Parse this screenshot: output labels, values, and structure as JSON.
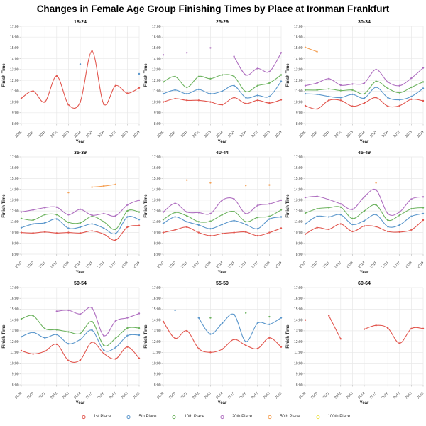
{
  "title": "Changes in Female Age Group Finishing Times by Place at Ironman Frankfurt",
  "legend": {
    "position": "bottom",
    "items": [
      {
        "label": "1st Place",
        "color": "#e2574f"
      },
      {
        "label": "5th Place",
        "color": "#5b97cc"
      },
      {
        "label": "10th Place",
        "color": "#6db35f"
      },
      {
        "label": "20th Place",
        "color": "#af6fc0"
      },
      {
        "label": "50th Place",
        "color": "#f5a054"
      },
      {
        "label": "100th Place",
        "color": "#ede44e"
      }
    ]
  },
  "chart_data": {
    "type": "line",
    "x": [
      2009,
      2010,
      2011,
      2012,
      2013,
      2014,
      2015,
      2016,
      2017,
      2018,
      2019
    ],
    "xlabel": "Year",
    "ylabel": "Finish Time",
    "ylim": [
      8,
      17
    ],
    "y_ticks": [
      "8:00",
      "9:00",
      "10:00",
      "11:00",
      "12:00",
      "13:00",
      "14:00",
      "15:00",
      "16:00",
      "17:00"
    ],
    "grid": true,
    "note": "values are finishing times in decimal hours; null = no finisher that year",
    "facets": [
      {
        "title": "18-24",
        "series": [
          {
            "name": "1st Place",
            "values": [
              10.33,
              11.0,
              10.0,
              12.4,
              9.75,
              10.0,
              14.7,
              9.8,
              11.5,
              10.8,
              11.3
            ]
          },
          {
            "name": "5th Place",
            "values": [
              null,
              null,
              null,
              null,
              null,
              13.5,
              null,
              null,
              null,
              null,
              12.6
            ]
          }
        ]
      },
      {
        "title": "25-29",
        "series": [
          {
            "name": "1st Place",
            "values": [
              10.0,
              10.3,
              10.15,
              10.15,
              10.0,
              9.75,
              10.4,
              9.85,
              10.15,
              9.9,
              10.2
            ]
          },
          {
            "name": "5th Place",
            "values": [
              10.75,
              11.1,
              10.75,
              11.15,
              10.75,
              11.0,
              11.5,
              10.4,
              10.6,
              10.5,
              11.9
            ]
          },
          {
            "name": "10th Place",
            "values": [
              11.85,
              12.35,
              11.35,
              12.35,
              12.15,
              12.5,
              12.35,
              10.95,
              11.5,
              11.75,
              12.5
            ]
          },
          {
            "name": "20th Place",
            "values": [
              14.35,
              null,
              14.55,
              null,
              15.0,
              null,
              14.2,
              12.5,
              13.1,
              12.8,
              14.55
            ]
          }
        ]
      },
      {
        "title": "30-34",
        "series": [
          {
            "name": "1st Place",
            "values": [
              9.65,
              9.35,
              10.15,
              10.15,
              9.6,
              9.9,
              10.4,
              9.6,
              9.65,
              10.25,
              10.1
            ]
          },
          {
            "name": "5th Place",
            "values": [
              10.75,
              10.7,
              10.5,
              10.4,
              10.7,
              10.35,
              11.35,
              10.4,
              10.2,
              10.5,
              11.25
            ]
          },
          {
            "name": "10th Place",
            "values": [
              11.1,
              11.1,
              11.2,
              11.05,
              11.1,
              10.75,
              11.9,
              11.25,
              10.85,
              11.35,
              11.85
            ]
          },
          {
            "name": "20th Place",
            "values": [
              11.5,
              11.75,
              12.15,
              11.55,
              11.65,
              11.75,
              13.0,
              11.85,
              11.5,
              12.2,
              13.15
            ]
          },
          {
            "name": "50th Place",
            "values": [
              15.05,
              14.65,
              null,
              null,
              null,
              null,
              null,
              null,
              null,
              null,
              null
            ]
          }
        ]
      },
      {
        "title": "35-39",
        "series": [
          {
            "name": "1st Place",
            "values": [
              10.0,
              9.95,
              10.05,
              9.95,
              10.0,
              9.95,
              10.15,
              9.85,
              9.3,
              10.5,
              10.65
            ]
          },
          {
            "name": "5th Place",
            "values": [
              10.45,
              10.8,
              10.9,
              11.25,
              10.4,
              10.5,
              10.8,
              10.4,
              9.9,
              11.45,
              11.2
            ]
          },
          {
            "name": "10th Place",
            "values": [
              11.3,
              11.15,
              11.65,
              11.65,
              10.95,
              10.9,
              11.5,
              11.0,
              10.3,
              12.0,
              11.9
            ]
          },
          {
            "name": "20th Place",
            "values": [
              11.9,
              12.1,
              12.3,
              12.35,
              11.65,
              12.15,
              11.6,
              11.75,
              11.55,
              12.55,
              13.0
            ]
          },
          {
            "name": "50th Place",
            "values": [
              null,
              null,
              null,
              null,
              13.7,
              null,
              14.2,
              14.3,
              14.45,
              null,
              null
            ]
          }
        ]
      },
      {
        "title": "40-44",
        "series": [
          {
            "name": "1st Place",
            "values": [
              10.0,
              10.25,
              10.5,
              10.0,
              9.7,
              9.9,
              10.0,
              10.05,
              9.7,
              10.0,
              10.4
            ]
          },
          {
            "name": "5th Place",
            "values": [
              10.85,
              11.45,
              11.0,
              10.7,
              10.35,
              10.75,
              11.1,
              10.75,
              10.35,
              11.25,
              11.45
            ]
          },
          {
            "name": "10th Place",
            "values": [
              11.2,
              11.85,
              11.55,
              11.0,
              11.05,
              11.65,
              11.95,
              11.0,
              11.4,
              11.5,
              12.1
            ]
          },
          {
            "name": "20th Place",
            "values": [
              11.9,
              12.7,
              11.9,
              11.85,
              11.75,
              13.0,
              13.1,
              11.75,
              12.5,
              12.65,
              13.0
            ]
          },
          {
            "name": "50th Place",
            "values": [
              null,
              null,
              14.85,
              null,
              14.6,
              null,
              null,
              14.35,
              null,
              14.4,
              null
            ]
          }
        ]
      },
      {
        "title": "45-49",
        "series": [
          {
            "name": "1st Place",
            "values": [
              9.85,
              10.45,
              10.3,
              10.8,
              10.1,
              10.6,
              10.55,
              10.1,
              10.05,
              10.25,
              11.15
            ]
          },
          {
            "name": "5th Place",
            "values": [
              10.8,
              11.5,
              11.45,
              11.65,
              10.75,
              11.1,
              11.65,
              10.55,
              10.7,
              11.5,
              11.75
            ]
          },
          {
            "name": "10th Place",
            "values": [
              11.8,
              12.2,
              12.3,
              12.35,
              11.3,
              12.0,
              12.55,
              11.15,
              11.6,
              12.2,
              12.3
            ]
          },
          {
            "name": "20th Place",
            "values": [
              13.25,
              13.35,
              13.05,
              12.65,
              12.15,
              13.3,
              13.95,
              11.75,
              11.9,
              13.1,
              13.3
            ]
          },
          {
            "name": "50th Place",
            "values": [
              null,
              null,
              null,
              null,
              null,
              null,
              14.6,
              null,
              null,
              null,
              null
            ]
          }
        ]
      },
      {
        "title": "50-54",
        "series": [
          {
            "name": "1st Place",
            "values": [
              11.15,
              10.85,
              11.1,
              11.75,
              10.25,
              10.3,
              11.95,
              10.9,
              10.4,
              11.5,
              10.45
            ]
          },
          {
            "name": "5th Place",
            "values": [
              12.45,
              12.85,
              12.35,
              12.65,
              11.8,
              12.2,
              13.05,
              11.2,
              11.45,
              12.55,
              12.6
            ]
          },
          {
            "name": "10th Place",
            "values": [
              14.1,
              14.4,
              13.2,
              13.1,
              12.9,
              12.75,
              13.85,
              11.65,
              12.3,
              13.25,
              13.25
            ]
          },
          {
            "name": "20th Place",
            "values": [
              null,
              null,
              null,
              14.8,
              14.9,
              14.55,
              15.1,
              12.55,
              13.9,
              14.2,
              14.6
            ]
          }
        ]
      },
      {
        "title": "55-59",
        "series": [
          {
            "name": "1st Place",
            "values": [
              13.85,
              12.3,
              13.0,
              11.35,
              11.0,
              11.3,
              12.2,
              11.65,
              11.35,
              12.35,
              11.5
            ]
          },
          {
            "name": "5th Place",
            "values": [
              null,
              14.9,
              null,
              14.2,
              12.7,
              13.7,
              14.5,
              12.0,
              13.7,
              13.6,
              14.2
            ]
          },
          {
            "name": "10th Place",
            "values": [
              null,
              null,
              null,
              null,
              14.2,
              null,
              null,
              14.65,
              null,
              14.3,
              null
            ]
          }
        ]
      },
      {
        "title": "60-64",
        "series": [
          {
            "name": "1st Place",
            "values": [
              14.0,
              null,
              14.4,
              12.25,
              null,
              13.15,
              13.5,
              13.25,
              11.85,
              13.2,
              13.2
            ]
          }
        ]
      }
    ]
  }
}
